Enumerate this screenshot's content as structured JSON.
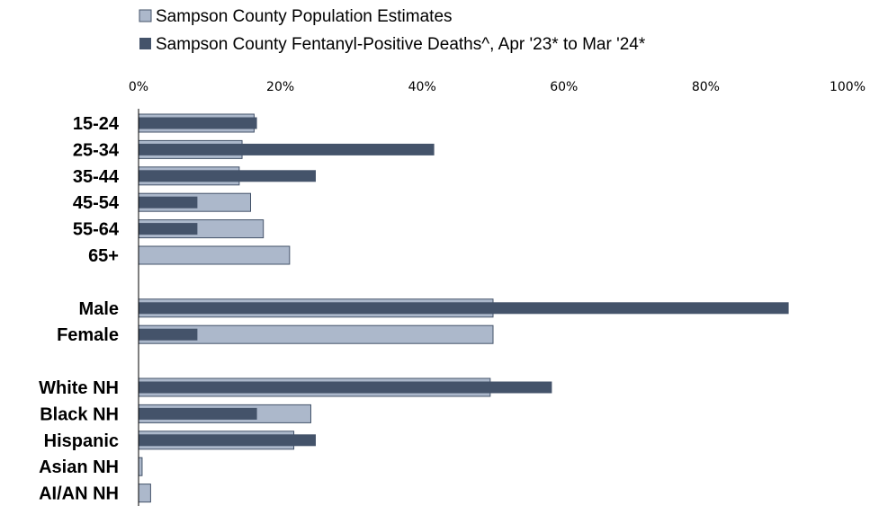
{
  "chart_data": {
    "type": "bar",
    "orientation": "horizontal",
    "xlim": [
      0,
      100
    ],
    "x_ticks": [
      "0%",
      "20%",
      "40%",
      "60%",
      "80%",
      "100%"
    ],
    "legend_position": "top",
    "grid": false,
    "categories": [
      "15-24",
      "25-34",
      "35-44",
      "45-54",
      "55-64",
      "65+",
      "Male",
      "Female",
      "White NH",
      "Black NH",
      "Hispanic",
      "Asian NH",
      "AI/AN NH"
    ],
    "groups": [
      {
        "categories": [
          "15-24",
          "25-34",
          "35-44",
          "45-54",
          "55-64",
          "65+"
        ]
      },
      {
        "categories": [
          "Male",
          "Female"
        ]
      },
      {
        "categories": [
          "White NH",
          "Black NH",
          "Hispanic",
          "Asian NH",
          "AI/AN NH"
        ]
      }
    ],
    "series": [
      {
        "name": "Sampson County Population Estimates",
        "color": "#acb8cb",
        "values": [
          16.3,
          14.6,
          14.2,
          15.8,
          17.6,
          21.3,
          50.0,
          50.0,
          49.6,
          24.3,
          21.9,
          0.5,
          1.7
        ]
      },
      {
        "name": "Sampson County Fentanyl-Positive Deaths^, Apr '23* to Mar '24*",
        "color": "#44536a",
        "values": [
          16.7,
          41.7,
          25.0,
          8.3,
          8.3,
          0,
          91.7,
          8.3,
          58.3,
          16.7,
          25.0,
          0,
          0
        ]
      }
    ]
  }
}
